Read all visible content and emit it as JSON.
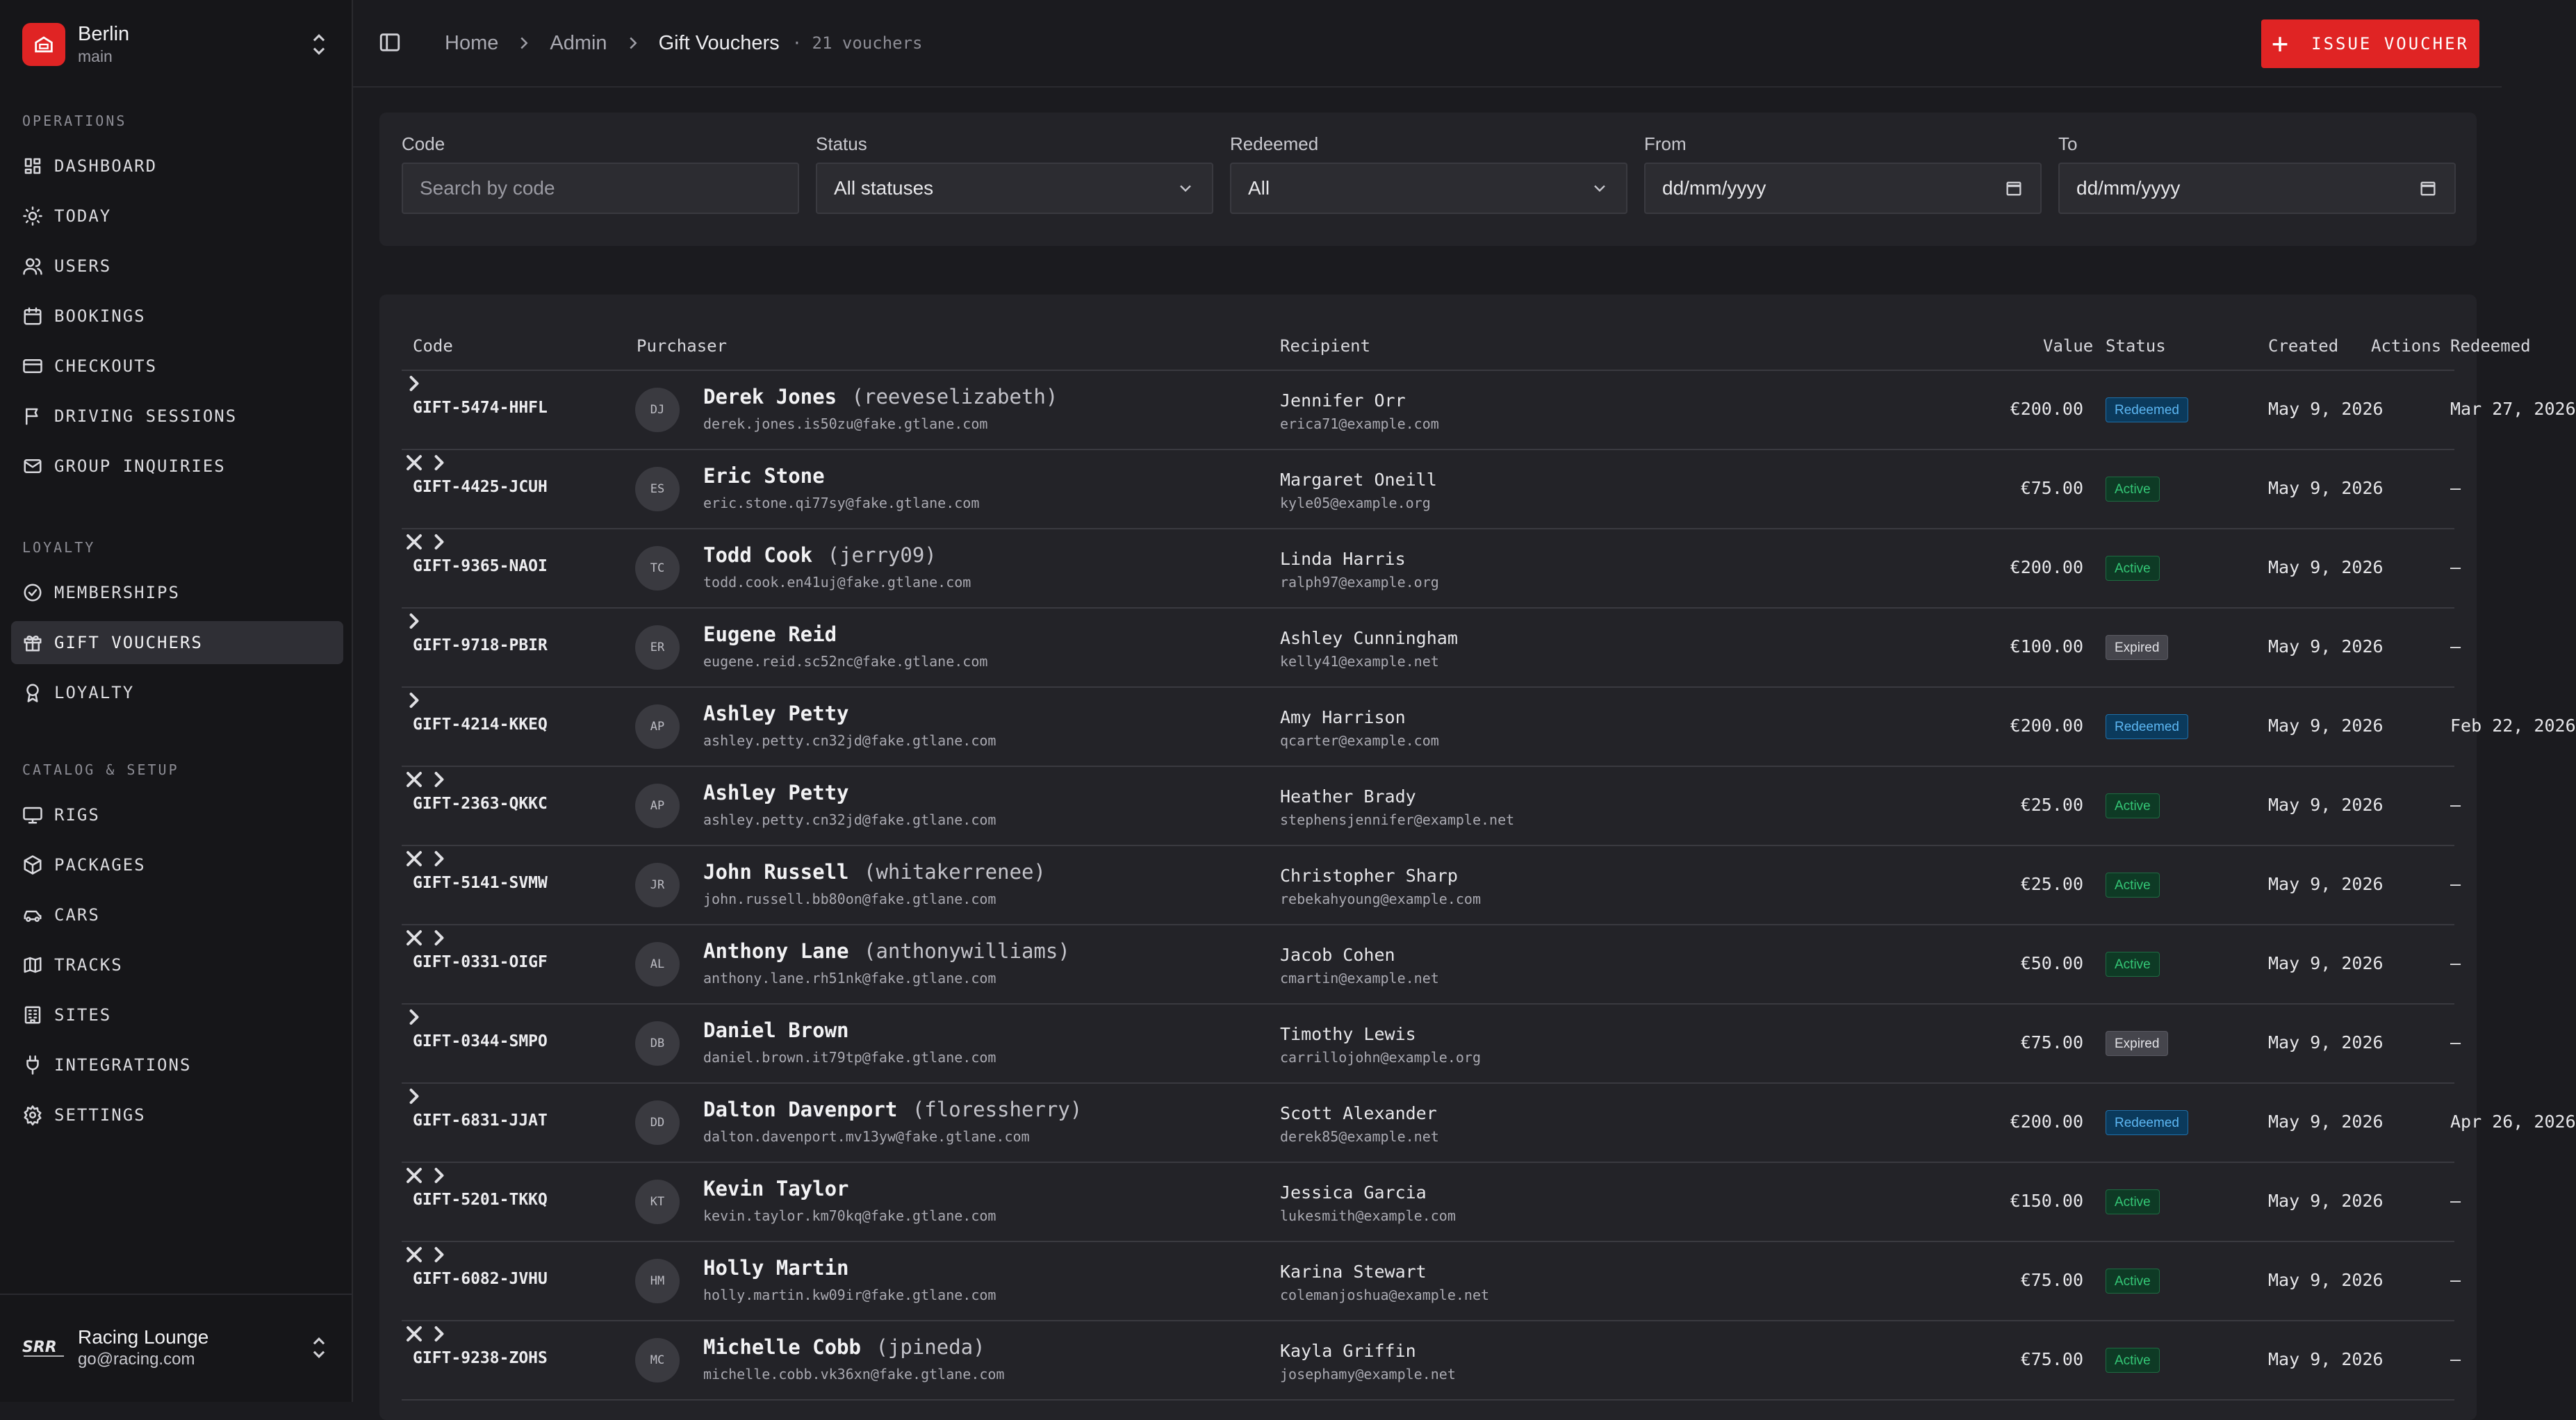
{
  "workspace": {
    "name": "Berlin",
    "branch": "main"
  },
  "sidebar": {
    "sections": [
      {
        "label": "OPERATIONS",
        "items": [
          {
            "label": "DASHBOARD",
            "icon": "dashboard-icon"
          },
          {
            "label": "TODAY",
            "icon": "sun-icon"
          },
          {
            "label": "USERS",
            "icon": "users-icon"
          },
          {
            "label": "BOOKINGS",
            "icon": "calendar-icon"
          },
          {
            "label": "CHECKOUTS",
            "icon": "credit-card-icon"
          },
          {
            "label": "DRIVING SESSIONS",
            "icon": "flag-icon"
          },
          {
            "label": "GROUP INQUIRIES",
            "icon": "mail-icon"
          }
        ]
      },
      {
        "label": "LOYALTY",
        "items": [
          {
            "label": "MEMBERSHIPS",
            "icon": "check-circle-icon"
          },
          {
            "label": "GIFT VOUCHERS",
            "icon": "gift-icon",
            "active": true
          },
          {
            "label": "LOYALTY",
            "icon": "award-icon"
          }
        ]
      },
      {
        "label": "CATALOG & SETUP",
        "items": [
          {
            "label": "RIGS",
            "icon": "monitor-icon"
          },
          {
            "label": "PACKAGES",
            "icon": "package-icon"
          },
          {
            "label": "CARS",
            "icon": "car-icon"
          },
          {
            "label": "TRACKS",
            "icon": "map-icon"
          },
          {
            "label": "SITES",
            "icon": "building-icon"
          },
          {
            "label": "INTEGRATIONS",
            "icon": "plug-icon"
          },
          {
            "label": "SETTINGS",
            "icon": "gear-icon"
          }
        ]
      }
    ]
  },
  "account": {
    "name": "Racing Lounge",
    "email": "go@racing.com"
  },
  "header": {
    "breadcrumbs": [
      "Home",
      "Admin",
      "Gift Vouchers"
    ],
    "count": "· 21 vouchers",
    "issue_label": "ISSUE VOUCHER"
  },
  "filters": {
    "code_label": "Code",
    "code_placeholder": "Search by code",
    "status_label": "Status",
    "status_value": "All statuses",
    "redeemed_label": "Redeemed",
    "redeemed_value": "All",
    "from_label": "From",
    "from_placeholder": "dd/mm/yyyy",
    "to_label": "To",
    "to_placeholder": "dd/mm/yyyy"
  },
  "table": {
    "columns": [
      "Code",
      "Purchaser",
      "Recipient",
      "Value",
      "Status",
      "Created",
      "Redeemed",
      "Actions"
    ],
    "rows": [
      {
        "code": "GIFT-5474-HHFL",
        "initials": "DJ",
        "purchaser": "Derek Jones",
        "handle": "(reeveselizabeth)",
        "p_email": "derek.jones.is50zu@fake.gtlane.com",
        "recipient": "Jennifer Orr",
        "r_email": "erica71@example.com",
        "value": "€200.00",
        "status": "Redeemed",
        "created": "May 9, 2026",
        "redeemed": "Mar 27, 2026",
        "cancellable": false
      },
      {
        "code": "GIFT-4425-JCUH",
        "initials": "ES",
        "purchaser": "Eric Stone",
        "handle": "",
        "p_email": "eric.stone.qi77sy@fake.gtlane.com",
        "recipient": "Margaret Oneill",
        "r_email": "kyle05@example.org",
        "value": "€75.00",
        "status": "Active",
        "created": "May 9, 2026",
        "redeemed": "—",
        "cancellable": true
      },
      {
        "code": "GIFT-9365-NAOI",
        "initials": "TC",
        "purchaser": "Todd Cook",
        "handle": "(jerry09)",
        "p_email": "todd.cook.en41uj@fake.gtlane.com",
        "recipient": "Linda Harris",
        "r_email": "ralph97@example.org",
        "value": "€200.00",
        "status": "Active",
        "created": "May 9, 2026",
        "redeemed": "—",
        "cancellable": true
      },
      {
        "code": "GIFT-9718-PBIR",
        "initials": "ER",
        "purchaser": "Eugene Reid",
        "handle": "",
        "p_email": "eugene.reid.sc52nc@fake.gtlane.com",
        "recipient": "Ashley Cunningham",
        "r_email": "kelly41@example.net",
        "value": "€100.00",
        "status": "Expired",
        "created": "May 9, 2026",
        "redeemed": "—",
        "cancellable": false
      },
      {
        "code": "GIFT-4214-KKEQ",
        "initials": "AP",
        "purchaser": "Ashley Petty",
        "handle": "",
        "p_email": "ashley.petty.cn32jd@fake.gtlane.com",
        "recipient": "Amy Harrison",
        "r_email": "qcarter@example.com",
        "value": "€200.00",
        "status": "Redeemed",
        "created": "May 9, 2026",
        "redeemed": "Feb 22, 2026",
        "cancellable": false
      },
      {
        "code": "GIFT-2363-QKKC",
        "initials": "AP",
        "purchaser": "Ashley Petty",
        "handle": "",
        "p_email": "ashley.petty.cn32jd@fake.gtlane.com",
        "recipient": "Heather Brady",
        "r_email": "stephensjennifer@example.net",
        "value": "€25.00",
        "status": "Active",
        "created": "May 9, 2026",
        "redeemed": "—",
        "cancellable": true
      },
      {
        "code": "GIFT-5141-SVMW",
        "initials": "JR",
        "purchaser": "John Russell",
        "handle": "(whitakerrenee)",
        "p_email": "john.russell.bb80on@fake.gtlane.com",
        "recipient": "Christopher Sharp",
        "r_email": "rebekahyoung@example.com",
        "value": "€25.00",
        "status": "Active",
        "created": "May 9, 2026",
        "redeemed": "—",
        "cancellable": true
      },
      {
        "code": "GIFT-0331-OIGF",
        "initials": "AL",
        "purchaser": "Anthony Lane",
        "handle": "(anthonywilliams)",
        "p_email": "anthony.lane.rh51nk@fake.gtlane.com",
        "recipient": "Jacob Cohen",
        "r_email": "cmartin@example.net",
        "value": "€50.00",
        "status": "Active",
        "created": "May 9, 2026",
        "redeemed": "—",
        "cancellable": true
      },
      {
        "code": "GIFT-0344-SMPO",
        "initials": "DB",
        "purchaser": "Daniel Brown",
        "handle": "",
        "p_email": "daniel.brown.it79tp@fake.gtlane.com",
        "recipient": "Timothy Lewis",
        "r_email": "carrillojohn@example.org",
        "value": "€75.00",
        "status": "Expired",
        "created": "May 9, 2026",
        "redeemed": "—",
        "cancellable": false
      },
      {
        "code": "GIFT-6831-JJAT",
        "initials": "DD",
        "purchaser": "Dalton Davenport",
        "handle": "(floressherry)",
        "p_email": "dalton.davenport.mv13yw@fake.gtlane.com",
        "recipient": "Scott Alexander",
        "r_email": "derek85@example.net",
        "value": "€200.00",
        "status": "Redeemed",
        "created": "May 9, 2026",
        "redeemed": "Apr 26, 2026",
        "cancellable": false
      },
      {
        "code": "GIFT-5201-TKKQ",
        "initials": "KT",
        "purchaser": "Kevin Taylor",
        "handle": "",
        "p_email": "kevin.taylor.km70kq@fake.gtlane.com",
        "recipient": "Jessica Garcia",
        "r_email": "lukesmith@example.com",
        "value": "€150.00",
        "status": "Active",
        "created": "May 9, 2026",
        "redeemed": "—",
        "cancellable": true
      },
      {
        "code": "GIFT-6082-JVHU",
        "initials": "HM",
        "purchaser": "Holly Martin",
        "handle": "",
        "p_email": "holly.martin.kw09ir@fake.gtlane.com",
        "recipient": "Karina Stewart",
        "r_email": "colemanjoshua@example.net",
        "value": "€75.00",
        "status": "Active",
        "created": "May 9, 2026",
        "redeemed": "—",
        "cancellable": true
      },
      {
        "code": "GIFT-9238-ZOHS",
        "initials": "MC",
        "purchaser": "Michelle Cobb",
        "handle": "(jpineda)",
        "p_email": "michelle.cobb.vk36xn@fake.gtlane.com",
        "recipient": "Kayla Griffin",
        "r_email": "josephamy@example.net",
        "value": "€75.00",
        "status": "Active",
        "created": "May 9, 2026",
        "redeemed": "—",
        "cancellable": true
      }
    ]
  }
}
